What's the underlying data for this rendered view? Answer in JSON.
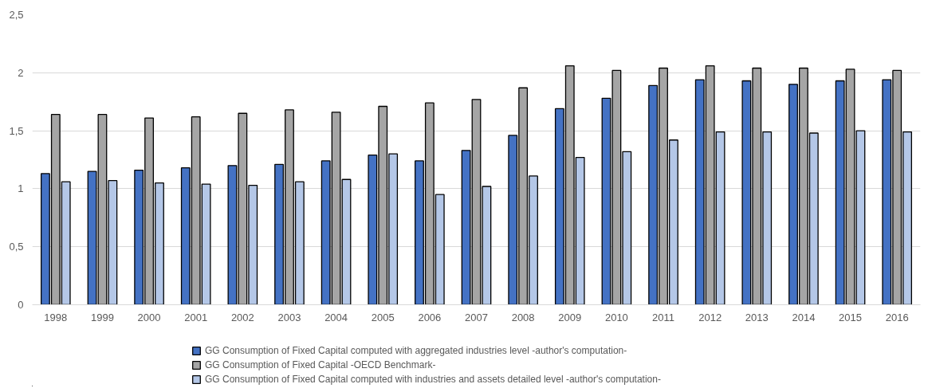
{
  "chart_data": {
    "type": "bar",
    "categories": [
      "1998",
      "1999",
      "2000",
      "2001",
      "2002",
      "2003",
      "2004",
      "2005",
      "2006",
      "2007",
      "2008",
      "2009",
      "2010",
      "2011",
      "2012",
      "2013",
      "2014",
      "2015",
      "2016"
    ],
    "series": [
      {
        "name": "GG Consumption of Fixed Capital computed with aggregated industries level -author's computation-",
        "color": "#4472c4",
        "values": [
          1.13,
          1.15,
          1.16,
          1.18,
          1.2,
          1.21,
          1.24,
          1.29,
          1.24,
          1.33,
          1.46,
          1.69,
          1.78,
          1.89,
          1.94,
          1.93,
          1.9,
          1.93,
          1.94
        ]
      },
      {
        "name": "GG Consumption of Fixed Capital -OECD Benchmark-",
        "color": "#a5a5a5",
        "values": [
          1.64,
          1.64,
          1.61,
          1.62,
          1.65,
          1.68,
          1.66,
          1.71,
          1.74,
          1.77,
          1.87,
          2.06,
          2.02,
          2.04,
          2.06,
          2.04,
          2.04,
          2.03,
          2.02
        ]
      },
      {
        "name": "GG Consumption of Fixed Capital computed with industries and assets detailed level -author's computation-",
        "color": "#b4c7e7",
        "values": [
          1.06,
          1.07,
          1.05,
          1.04,
          1.03,
          1.06,
          1.08,
          1.3,
          0.95,
          1.02,
          1.11,
          1.27,
          1.32,
          1.42,
          1.49,
          1.49,
          1.48,
          1.5,
          1.49
        ]
      }
    ],
    "ylim": [
      0,
      2.5
    ],
    "yticks": [
      0,
      {
        "value": 0.5,
        "label": "0,5"
      },
      1,
      {
        "value": 1.5,
        "label": "1,5"
      },
      2,
      {
        "value": 2.5,
        "label": "2,5"
      }
    ],
    "grid": "y",
    "legend": "bottom"
  }
}
